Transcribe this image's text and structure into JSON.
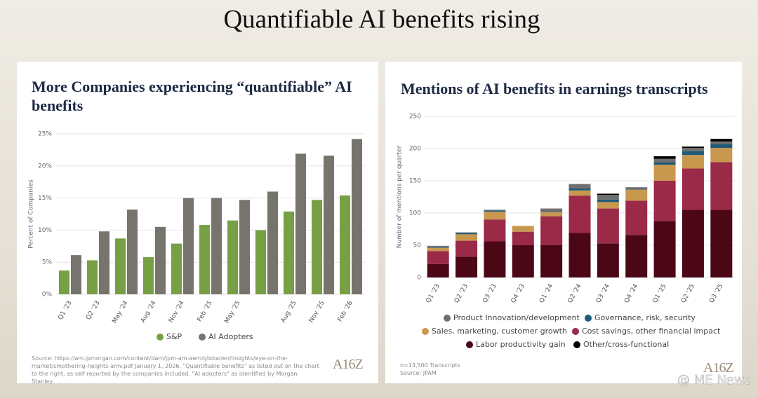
{
  "title": "Quantifiable AI benefits rising",
  "logo": "A16Z",
  "watermark": "@ ME News",
  "chart_data": [
    {
      "type": "bar",
      "title": "More Companies experiencing “quantifiable” AI benefits",
      "y_label": "Percent of Companies",
      "categories": [
        "Q1 '23",
        "Q2 '23",
        "May '24",
        "Aug '24",
        "Nov '24",
        "Feb '25",
        "May '25",
        null,
        "Aug '25",
        "Nov '25",
        "Feb '26"
      ],
      "series": [
        {
          "name": "S&P",
          "color": "#76a043",
          "values": [
            3.7,
            5.3,
            8.7,
            5.8,
            7.9,
            10.8,
            11.5,
            10.0,
            12.9,
            14.7,
            15.4
          ]
        },
        {
          "name": "AI Adopters",
          "color": "#77736d",
          "values": [
            6.1,
            9.8,
            13.2,
            10.5,
            15.0,
            15.0,
            14.7,
            16.0,
            21.9,
            21.6,
            24.2
          ]
        }
      ],
      "ylim": [
        0,
        25
      ],
      "yticks": [
        {
          "value": 0,
          "label": "0%"
        },
        {
          "value": 5,
          "label": "5%"
        },
        {
          "value": 10,
          "label": "10%"
        },
        {
          "value": 15,
          "label": "15%"
        },
        {
          "value": 20,
          "label": "20%"
        },
        {
          "value": 25,
          "label": "25%"
        }
      ],
      "grid": true,
      "stacked": false,
      "notes": [
        "Source: https://am.jpmorgan.com/content/dam/jpm-am-aem/global/en/insights/eye-on-the-market/smothering-heights-amv.pdf January 1, 2026. \"Quantifiable benefits\" as listed out on the chart to the right, as self reported by the companies included. \"AI adopters\" as identified by Morgan Stanley."
      ]
    },
    {
      "type": "bar",
      "title": "Mentions of AI benefits in earnings transcripts",
      "y_label": "Number of mentions per quarter",
      "categories": [
        "Q1 '23",
        "Q2 '23",
        "Q3 '23",
        "Q4 '23",
        "Q1 '24",
        "Q2 '24",
        "Q3 '24",
        "Q4 '24",
        "Q1 '25",
        "Q2 '25",
        "Q3 '25"
      ],
      "series": [
        {
          "name": "Labor productivity gain",
          "color": "#4b0716",
          "values": [
            21,
            32,
            56,
            50,
            50,
            69,
            53,
            66,
            87,
            105,
            105
          ]
        },
        {
          "name": "Cost savings, other financial impact",
          "color": "#9a2a48",
          "values": [
            20,
            25,
            34,
            21,
            45,
            58,
            54,
            53,
            63,
            64,
            74
          ]
        },
        {
          "name": "Sales, marketing, customer growth",
          "color": "#c9984f",
          "values": [
            5,
            10,
            12,
            9,
            6,
            8,
            10,
            17,
            25,
            21,
            22
          ]
        },
        {
          "name": "Governance, risk, security",
          "color": "#1f5a77",
          "values": [
            1,
            2,
            2,
            0,
            0,
            3,
            4,
            0,
            4,
            6,
            6
          ]
        },
        {
          "name": "Product Innovation/development",
          "color": "#6f6f6f",
          "values": [
            2,
            1,
            1,
            0,
            6,
            7,
            7,
            4,
            5,
            5,
            4
          ]
        },
        {
          "name": "Other/cross-functional",
          "color": "#000000",
          "values": [
            0,
            0,
            0,
            0,
            0,
            0,
            2,
            0,
            4,
            2,
            4
          ]
        }
      ],
      "ylim": [
        0,
        250
      ],
      "yticks": [
        0,
        50,
        100,
        150,
        200,
        250
      ],
      "grid": true,
      "stacked": true,
      "notes": [
        "n=13,500 Transcripts",
        "Source: JPAM"
      ]
    }
  ]
}
